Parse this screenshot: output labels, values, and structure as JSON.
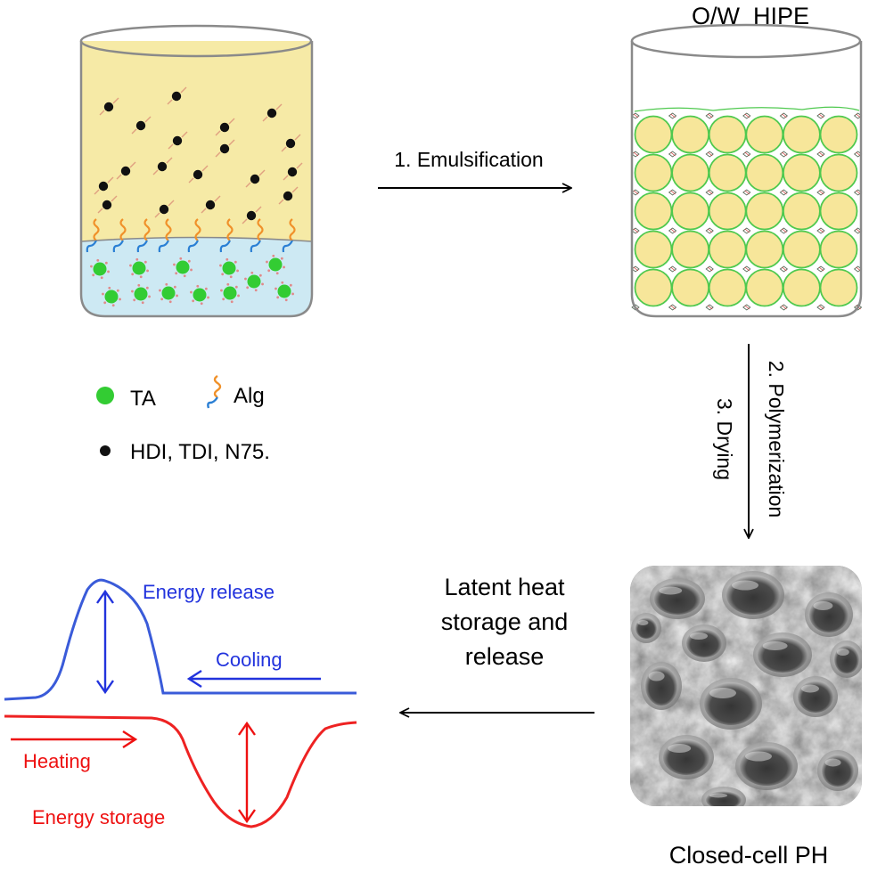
{
  "labels": {
    "hipe_title": "O/W  HIPE",
    "step1": "1. Emulsification",
    "step2": "2. Polymerization",
    "step3": "3. Drying",
    "latent_line1": "Latent heat",
    "latent_line2": "storage and",
    "latent_line3": "release",
    "closed_cell": "Closed-cell PH",
    "energy_release": "Energy release",
    "cooling": "Cooling",
    "heating": "Heating",
    "energy_storage": "Energy storage"
  },
  "legend": {
    "ta": "TA",
    "alg": "Alg",
    "isocyanates": "HDI, TDI, N75."
  },
  "colors": {
    "oil_phase": "#f6eaa6",
    "water_phase": "#cde9f3",
    "droplet": "#f7e69a",
    "droplet_edge": "#4fc94f",
    "ta_green": "#33cc33",
    "cooling_blue": "#2233dd",
    "heating_red": "#ee1111",
    "alg_orange": "#f0912a",
    "alg_blue": "#2a7fd4"
  },
  "icons": [
    "beaker-icon",
    "molecule-icon",
    "alginate-chain-icon",
    "arrow-icon",
    "sem-micrograph"
  ]
}
